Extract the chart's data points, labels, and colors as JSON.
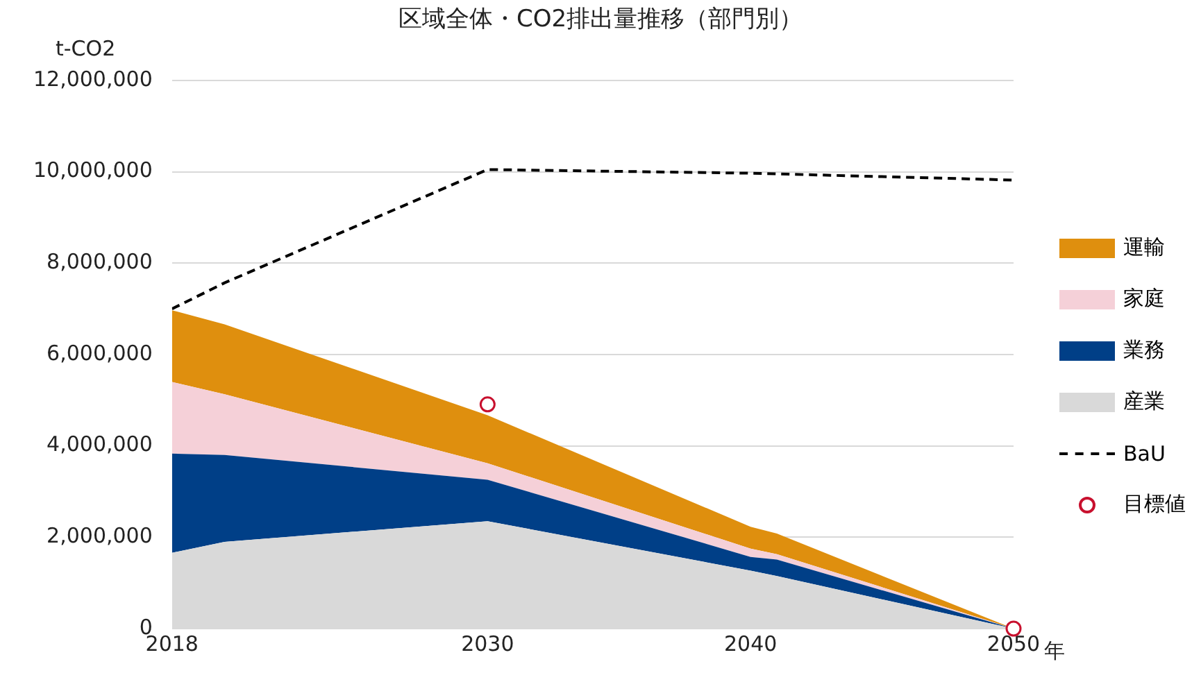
{
  "chart_data": {
    "type": "area",
    "title": "区域全体・CO2排出量推移（部門別）",
    "ylabel": "t-CO2",
    "xlabel": "年",
    "stacked": true,
    "grid": "y",
    "legend": "right",
    "marker": "none",
    "x": [
      2018,
      2020,
      2030,
      2040,
      2041,
      2050
    ],
    "xlim": [
      2018,
      2050
    ],
    "xticks": [
      2018,
      2030,
      2040,
      2050
    ],
    "ylim": [
      0,
      12000000
    ],
    "yticks": [
      {
        "value": 0,
        "label": "0"
      },
      {
        "value": 2000000,
        "label": "2,000,000"
      },
      {
        "value": 4000000,
        "label": "4,000,000"
      },
      {
        "value": 6000000,
        "label": "6,000,000"
      },
      {
        "value": 8000000,
        "label": "8,000,000"
      },
      {
        "value": 10000000,
        "label": "10,000,000"
      },
      {
        "value": 12000000,
        "label": "12,000,000"
      }
    ],
    "series": [
      {
        "name": "産業",
        "color": "#d9d9d9",
        "values": [
          1660000,
          1900000,
          2350000,
          1270000,
          1150000,
          0
        ]
      },
      {
        "name": "業務",
        "color": "#003f87",
        "values": [
          2170000,
          1900000,
          910000,
          300000,
          360000,
          0
        ]
      },
      {
        "name": "家庭",
        "color": "#f5d0d8",
        "values": [
          1570000,
          1330000,
          360000,
          180000,
          120000,
          0
        ]
      },
      {
        "name": "運輸",
        "color": "#df8f0e",
        "values": [
          1570000,
          1530000,
          1050000,
          480000,
          450000,
          0
        ]
      },
      {
        "name": "BaU",
        "type": "line",
        "line_style": "dashed",
        "color": "#000000",
        "x": [
          2018,
          2020,
          2030,
          2040,
          2050
        ],
        "values": [
          7000000,
          7570000,
          10050000,
          9970000,
          9820000
        ]
      },
      {
        "name": "目標値",
        "type": "scatter",
        "marker": "circle",
        "color": "#c8102e",
        "x": [
          2030,
          2050
        ],
        "values": [
          4910000,
          0
        ]
      }
    ]
  }
}
